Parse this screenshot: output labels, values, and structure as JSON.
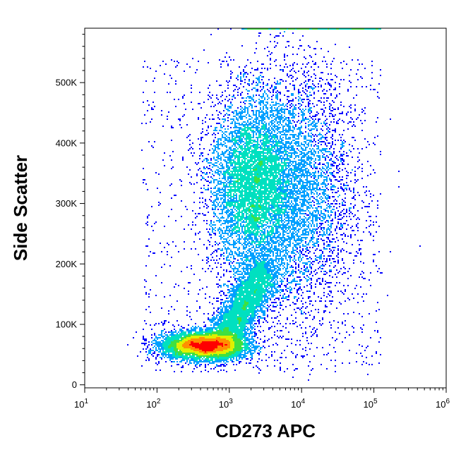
{
  "chart_data": {
    "type": "scatter",
    "plot_style": "density-colored dot plot (pseudocolor)",
    "xlabel": "CD273 APC",
    "ylabel": "Side Scatter",
    "x_scale": "log",
    "x_range": [
      10,
      1000000
    ],
    "x_ticks": [
      {
        "value": 10,
        "base": "10",
        "exp": "1"
      },
      {
        "value": 100,
        "base": "10",
        "exp": "2"
      },
      {
        "value": 1000,
        "base": "10",
        "exp": "3"
      },
      {
        "value": 10000,
        "base": "10",
        "exp": "4"
      },
      {
        "value": 100000,
        "base": "10",
        "exp": "5"
      },
      {
        "value": 1000000,
        "base": "10",
        "exp": "6"
      }
    ],
    "y_scale": "linear",
    "y_range": [
      -5000,
      590000
    ],
    "y_ticks": [
      {
        "value": 0,
        "label": "0"
      },
      {
        "value": 100000,
        "label": "100K"
      },
      {
        "value": 200000,
        "label": "200K"
      },
      {
        "value": 300000,
        "label": "300K"
      },
      {
        "value": 400000,
        "label": "400K"
      },
      {
        "value": 500000,
        "label": "500K"
      }
    ],
    "density_colormap": [
      "#0000ff",
      "#00a0ff",
      "#00e0c0",
      "#40e040",
      "#e0f000",
      "#ff9000",
      "#ff0000"
    ],
    "populations": [
      {
        "center_x": 450,
        "center_y": 65000,
        "spread_log_x": 0.32,
        "spread_y": 14000,
        "relative_density": "very high (red core)"
      },
      {
        "center_x": 2000,
        "center_y": 330000,
        "spread_log_x": 0.35,
        "spread_y": 90000,
        "relative_density": "high (green/yellow)"
      },
      {
        "center_x": 8000,
        "center_y": 320000,
        "spread_log_x": 0.5,
        "spread_y": 110000,
        "relative_density": "low (blue/cyan)"
      },
      {
        "center_x": 2500,
        "center_y": 130000,
        "spread_log_x": 0.25,
        "spread_y": 50000,
        "relative_density": "medium (connecting arm)"
      }
    ],
    "saturation_band_y": 590000,
    "grid": false,
    "legend": "none"
  }
}
